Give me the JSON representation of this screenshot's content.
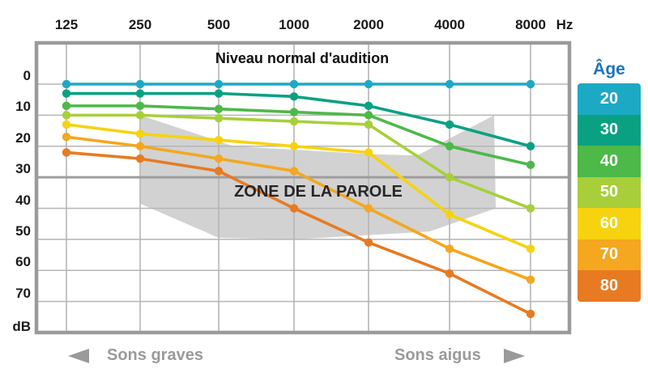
{
  "chart_data": {
    "type": "line",
    "title": "Niveau normal d'audition",
    "x_axis": {
      "unit": "Hz",
      "ticks": [
        "125",
        "250",
        "500",
        "1000",
        "2000",
        "4000",
        "8000"
      ]
    },
    "y_axis": {
      "unit": "dB",
      "ticks": [
        "0",
        "10",
        "20",
        "30",
        "40",
        "50",
        "60",
        "70"
      ],
      "range": [
        0,
        80
      ],
      "direction": "down"
    },
    "legend": {
      "title": "Âge",
      "title_color": "#1c74bd",
      "position": "right"
    },
    "series": [
      {
        "name": "20",
        "color": "#1ca9c4",
        "values": [
          0,
          0,
          0,
          0,
          0,
          0,
          0
        ]
      },
      {
        "name": "30",
        "color": "#0aa183",
        "values": [
          3,
          3,
          3,
          4,
          7,
          13,
          20
        ]
      },
      {
        "name": "40",
        "color": "#4cb948",
        "values": [
          7,
          7,
          8,
          9,
          10,
          20,
          26
        ]
      },
      {
        "name": "50",
        "color": "#a8cf3a",
        "values": [
          10,
          10,
          11,
          12,
          13,
          30,
          40
        ]
      },
      {
        "name": "60",
        "color": "#f6d30e",
        "values": [
          13,
          16,
          18,
          20,
          22,
          42,
          53
        ]
      },
      {
        "name": "70",
        "color": "#f4a71f",
        "values": [
          17,
          20,
          24,
          28,
          40,
          53,
          63
        ]
      },
      {
        "name": "80",
        "color": "#e87a22",
        "values": [
          22,
          24,
          28,
          40,
          51,
          61,
          74
        ]
      }
    ],
    "speech_zone": {
      "label": "ZONE DE LA PAROLE",
      "color": "#d2d2d2",
      "points": [
        [
          1,
          10
        ],
        [
          2.2,
          20
        ],
        [
          4,
          22.5
        ],
        [
          4.6,
          23
        ],
        [
          5.55,
          10
        ],
        [
          5.57,
          40
        ],
        [
          4.75,
          47.5
        ],
        [
          3,
          50
        ],
        [
          2,
          49.5
        ],
        [
          1,
          38.5
        ]
      ]
    },
    "footer": {
      "low_label": "Sons graves",
      "high_label": "Sons aigus"
    },
    "grid": {
      "color": "#b5b5b5",
      "emphasis_line_db": 30,
      "emphasis_color": "#9e9e9e",
      "border_color": "#9b9b9b"
    }
  }
}
